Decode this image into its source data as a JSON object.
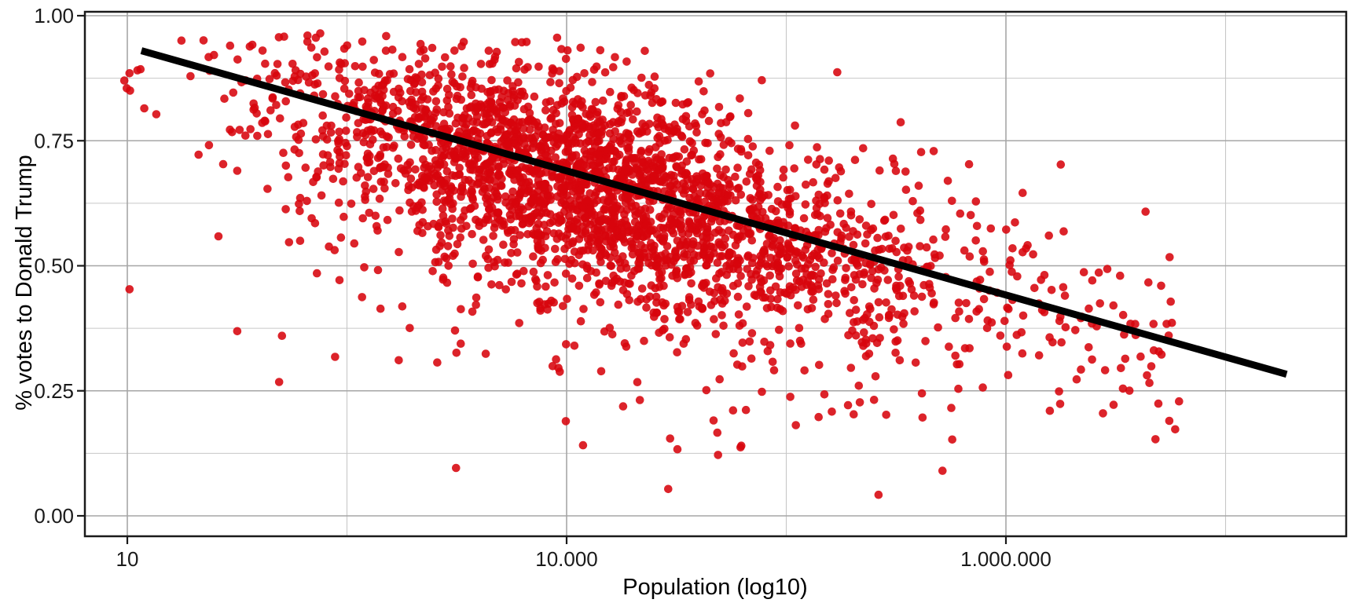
{
  "chart_data": {
    "type": "scatter",
    "title": "",
    "xlabel": "Population (log10)",
    "ylabel": "% votes to Donald Trump",
    "x_scale": "log10",
    "x_ticks": [
      {
        "label": "10",
        "log10": 1,
        "axis_pos": 0
      },
      {
        "label": "10.000",
        "log10": 4,
        "axis_pos": 1
      },
      {
        "label": "1.000.000",
        "log10": 6,
        "axis_pos": 2
      }
    ],
    "x_minor_axis_pos": [
      0.5,
      1.5,
      2.5
    ],
    "y_ticks": [
      {
        "label": "0.00",
        "value": 0.0
      },
      {
        "label": "0.25",
        "value": 0.25
      },
      {
        "label": "0.50",
        "value": 0.5
      },
      {
        "label": "0.75",
        "value": 0.75
      },
      {
        "label": "1.00",
        "value": 1.0
      }
    ],
    "y_minor_values": [
      0.125,
      0.375,
      0.625,
      0.875
    ],
    "ylim": [
      -0.041,
      1.008
    ],
    "xlim_axis": [
      -0.097,
      2.774
    ],
    "grid": {
      "major_color": "#a6a6a6",
      "minor_color": "#c7c7c7",
      "major_width": 1.6,
      "minor_width": 1.1
    },
    "panel": {
      "bg": "#ffffff",
      "border_color": "#1a1a1a",
      "border_width": 2.5
    },
    "ticks": {
      "color": "#1a1a1a",
      "length": 10,
      "width": 2.2
    },
    "points_style": {
      "color": "#d7050d",
      "opacity": 0.88,
      "radius": 5.3
    },
    "trend_line": {
      "x1_axis": 0.032,
      "y1": 0.93,
      "x2_axis": 2.639,
      "y2": 0.283,
      "color": "#000000",
      "width": 9
    },
    "point_cloud": {
      "n": 2900,
      "seed": 42,
      "x_mixture": [
        {
          "weight": 0.8,
          "mean": 1.02,
          "sd": 0.33
        },
        {
          "weight": 0.2,
          "mean": 1.5,
          "sd": 0.55
        }
      ],
      "x_clip": [
        -0.01,
        2.42
      ],
      "y_model": {
        "intercept": 0.92,
        "slope": -0.245,
        "noise_sd": 0.105,
        "down_tail_prob": 0.07,
        "down_tail_mean": 0.17,
        "down_tail_sd": 0.12
      },
      "y_clip": [
        0.035,
        0.965
      ]
    },
    "notable_points": [
      {
        "axis_x": 0.03,
        "y": 0.893
      },
      {
        "axis_x": 0.005,
        "y": 0.885
      },
      {
        "axis_x": 0.005,
        "y": 0.453
      },
      {
        "axis_x": 0.234,
        "y": 0.94
      },
      {
        "axis_x": 0.345,
        "y": 0.957
      },
      {
        "axis_x": 0.41,
        "y": 0.948
      },
      {
        "axis_x": 0.352,
        "y": 0.36
      },
      {
        "axis_x": 1.675,
        "y": 0.735
      },
      {
        "axis_x": 1.71,
        "y": 0.042
      },
      {
        "axis_x": 2.1,
        "y": 0.21
      },
      {
        "axis_x": 2.245,
        "y": 0.222
      },
      {
        "axis_x": 2.26,
        "y": 0.48
      },
      {
        "axis_x": 2.372,
        "y": 0.19
      }
    ]
  }
}
